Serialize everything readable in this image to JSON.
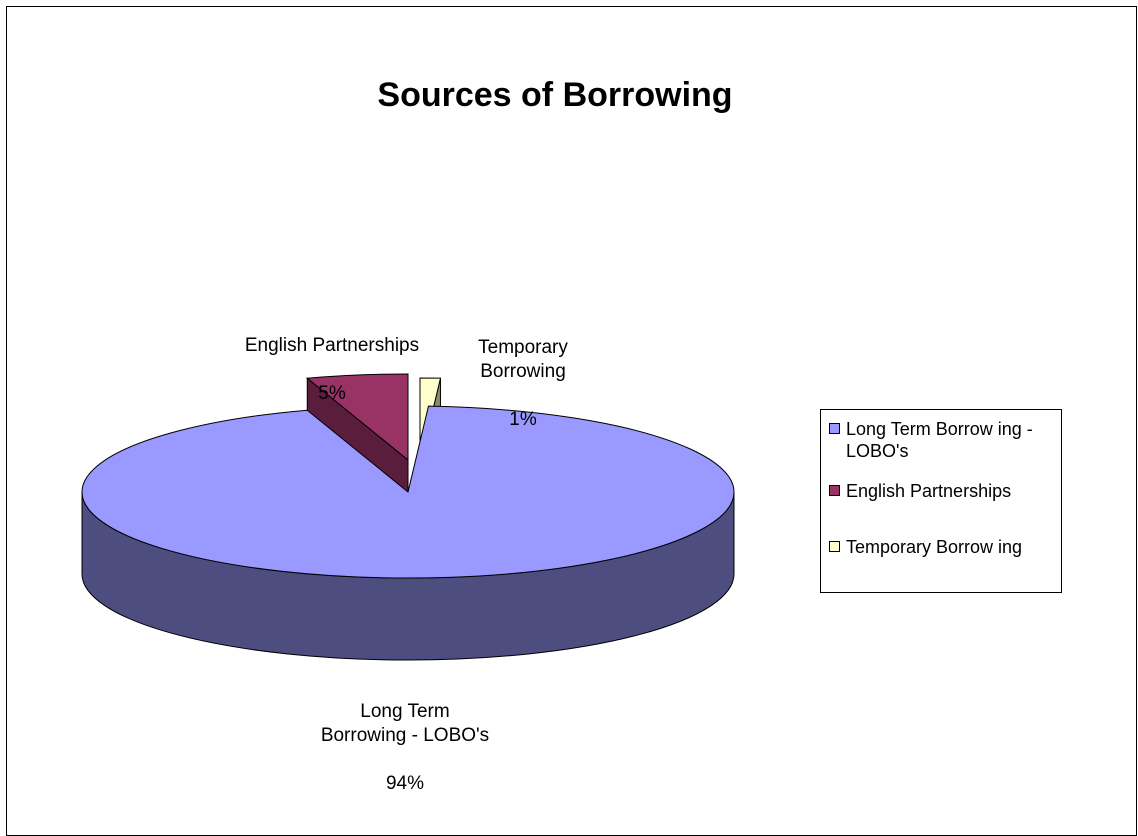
{
  "chart_data": {
    "type": "pie",
    "title": "Sources of Borrowing",
    "categories": [
      "Long Term Borrowing - LOBO's",
      "English Partnerships",
      "Temporary Borrowing"
    ],
    "values": [
      94,
      5,
      1
    ],
    "data_labels": [
      {
        "name": "Long Term\nBorrowing - LOBO's",
        "pct": "94%"
      },
      {
        "name": "English Partnerships",
        "pct": "5%"
      },
      {
        "name": "Temporary\nBorrowing",
        "pct": "1%"
      }
    ],
    "legend": {
      "position": "right",
      "entries": [
        "Long Term Borrow ing - LOBO's",
        "English Partnerships",
        "Temporary Borrow ing"
      ]
    },
    "colors": {
      "top": [
        "#9999ff",
        "#993366",
        "#ffffcc"
      ],
      "side": [
        "#4d4d80",
        "#4d1a33",
        "#808066"
      ],
      "cut": [
        "#4d4d80",
        "#5a1e3c",
        "#8a8a6a"
      ]
    },
    "style": "3d-exploded-pie"
  }
}
